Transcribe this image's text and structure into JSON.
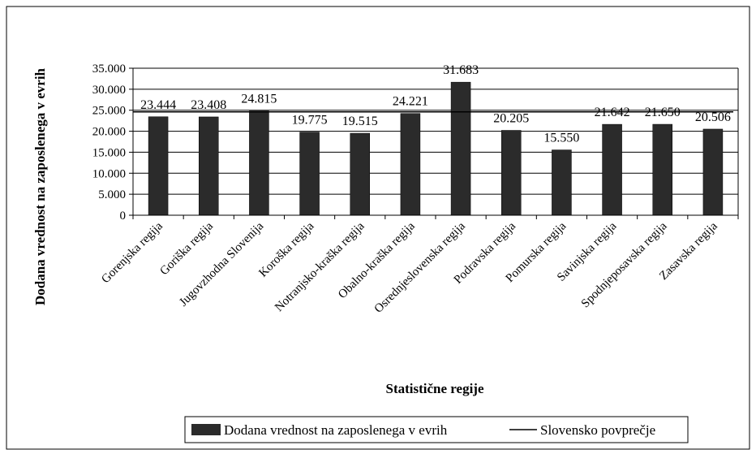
{
  "chart_data": {
    "type": "bar",
    "categories": [
      "Gorenjska regija",
      "Goriška regija",
      "Jugovzhodna Slovenija",
      "Koroška regija",
      "Notranjsko-kraška regija",
      "Obalno-kraška regija",
      "Osrednjeslovenska regija",
      "Podravska regija",
      "Pomurska regija",
      "Savinjska regija",
      "Spodnjeposavska regija",
      "Zasavska regija"
    ],
    "series": [
      {
        "name": "Dodana vrednost na zaposlenega v evrih",
        "values": [
          23444,
          23408,
          24815,
          19775,
          19515,
          24221,
          31683,
          20205,
          15550,
          21642,
          21650,
          20506
        ],
        "labels": [
          "23.444",
          "23.408",
          "24.815",
          "19.775",
          "19.515",
          "24.221",
          "31.683",
          "20.205",
          "15.550",
          "21.642",
          "21.650",
          "20.506"
        ],
        "color": "#2b2b2b"
      },
      {
        "name": "Slovensko povprečje",
        "type": "line",
        "value": 24600,
        "color": "#000000"
      }
    ],
    "xlabel": "Statistične regije",
    "ylabel": "Dodana vrednost na zaposlenega v evrih",
    "ylim": [
      0,
      35000
    ],
    "yticks": [
      "0",
      "5.000",
      "10.000",
      "15.000",
      "20.000",
      "25.000",
      "30.000",
      "35.000"
    ],
    "grid": true,
    "legend": "bottom"
  }
}
